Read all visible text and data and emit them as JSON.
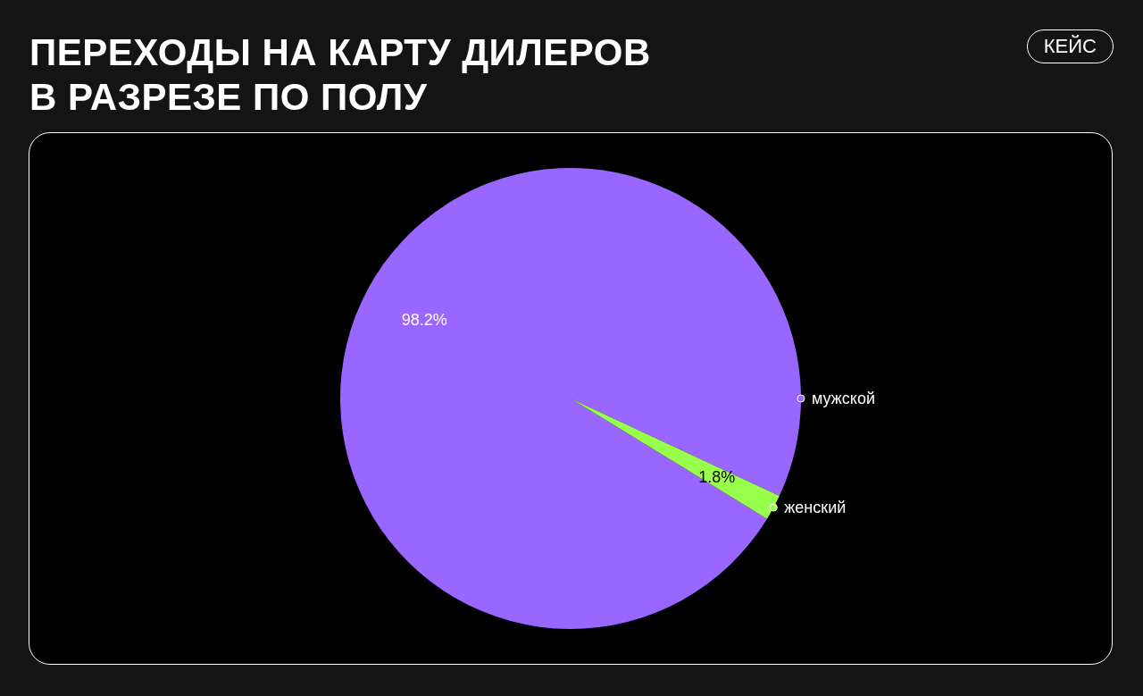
{
  "chart_data": {
    "type": "pie",
    "title": "ПЕРЕХОДЫ НА КАРТУ ДИЛЕРОВ В РАЗРЕЗЕ ПО ПОЛУ",
    "categories": [
      "мужской",
      "женский"
    ],
    "values": [
      98.2,
      1.8
    ],
    "colors": [
      "#9966ff",
      "#99ff4d"
    ],
    "value_labels": [
      "98.2%",
      "1.8%"
    ],
    "legend": "right",
    "annotations": [
      "КЕЙС"
    ]
  }
}
